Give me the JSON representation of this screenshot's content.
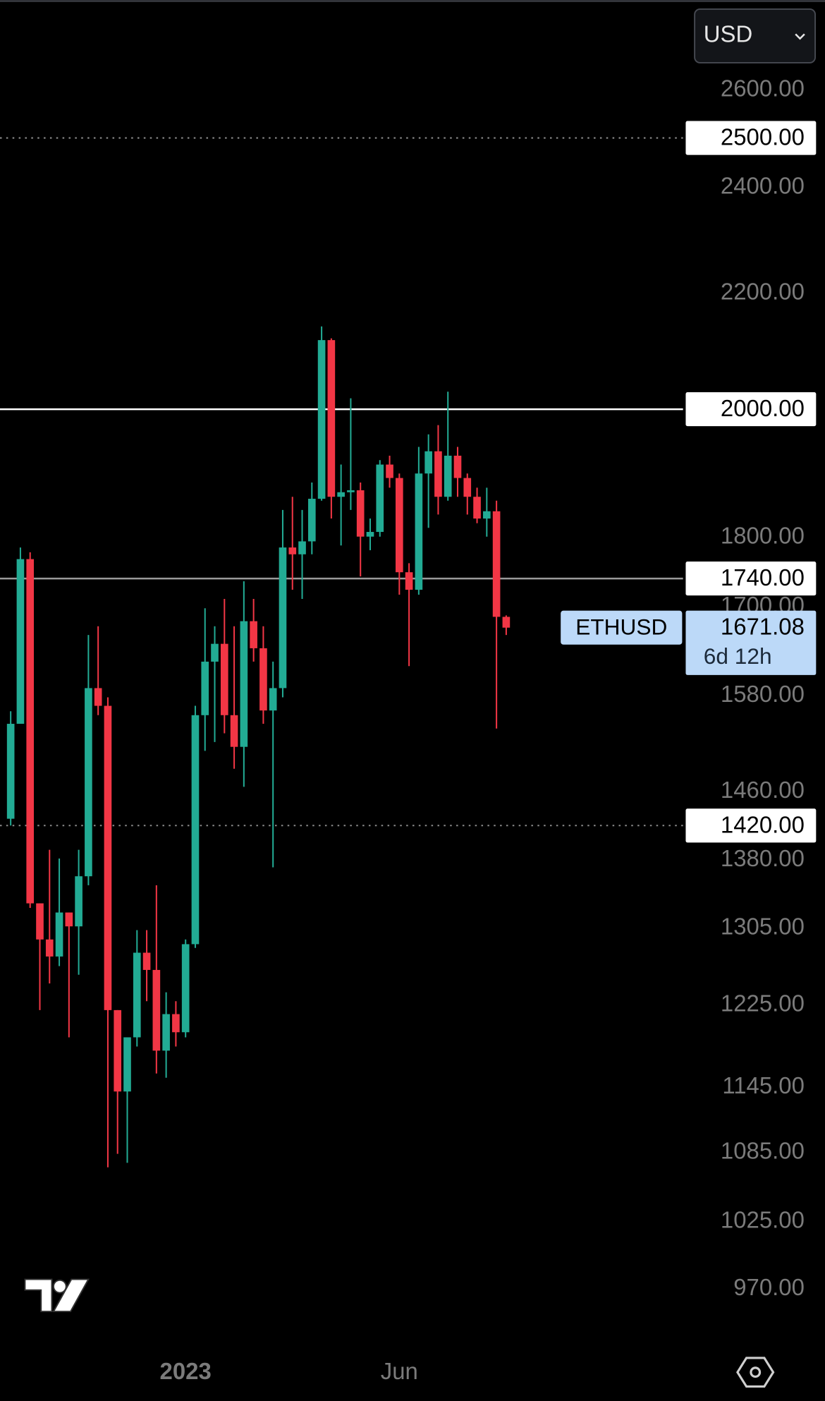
{
  "chart_data": {
    "type": "candlestick",
    "currency": "USD",
    "log_scale": true,
    "up_color": "#22ab94",
    "down_color": "#f23645",
    "categories": [
      null,
      null,
      null,
      null,
      null,
      null,
      null,
      null,
      null,
      null,
      null,
      null,
      null,
      null,
      null,
      null,
      null,
      null,
      null,
      null,
      null,
      null,
      null,
      null,
      null,
      null,
      null,
      null,
      null,
      null,
      null,
      null,
      null,
      null,
      null,
      null,
      null,
      null,
      null,
      null,
      null,
      null,
      null,
      null,
      null,
      null,
      null,
      null,
      null,
      null,
      null,
      null
    ],
    "open": [
      1428,
      1544,
      1768,
      1332,
      1293,
      1275,
      1322,
      1307,
      1362,
      1590,
      1567,
      1220,
      1141,
      1193,
      1279,
      1261,
      1180,
      1216,
      1198,
      1288,
      1555,
      1625,
      1649,
      1555,
      1515,
      1680,
      1643,
      1561,
      1590,
      1785,
      1775,
      1794,
      1858,
      2117,
      1861,
      1868,
      1871,
      1801,
      1808,
      1911,
      1890,
      1749,
      1724,
      1897,
      1932,
      1861,
      1925,
      1890,
      1861,
      1828,
      1839,
      1686
    ],
    "high": [
      1560,
      1785,
      1778,
      1332,
      1392,
      1382,
      1322,
      1392,
      1661,
      1673,
      1578,
      1220,
      1193,
      1303,
      1303,
      1352,
      1238,
      1229,
      1293,
      1567,
      1698,
      1673,
      1711,
      1673,
      1736,
      1711,
      1673,
      1625,
      1841,
      1861,
      1841,
      1883,
      2141,
      2120,
      1911,
      2018,
      1883,
      1828,
      1918,
      1925,
      1897,
      1762,
      1939,
      1959,
      1974,
      2029,
      1939,
      1897,
      1875,
      1875,
      1855,
      1688
    ],
    "low": [
      1420,
      1544,
      1327,
      1220,
      1247,
      1265,
      1193,
      1256,
      1352,
      1555,
      1072,
      1084,
      1076,
      1184,
      1229,
      1158,
      1154,
      1184,
      1193,
      1284,
      1510,
      1521,
      1532,
      1488,
      1466,
      1625,
      1544,
      1372,
      1578,
      1724,
      1711,
      1775,
      1855,
      1828,
      1788,
      1841,
      1743,
      1781,
      1801,
      1875,
      1717,
      1619,
      1717,
      1814,
      1834,
      1855,
      1861,
      1834,
      1821,
      1801,
      1538,
      1661
    ],
    "close": [
      1544,
      1768,
      1332,
      1293,
      1275,
      1322,
      1307,
      1362,
      1590,
      1567,
      1220,
      1141,
      1193,
      1279,
      1261,
      1180,
      1216,
      1198,
      1288,
      1555,
      1625,
      1649,
      1555,
      1515,
      1680,
      1643,
      1561,
      1590,
      1785,
      1775,
      1794,
      1858,
      2117,
      1861,
      1868,
      1871,
      1801,
      1808,
      1911,
      1890,
      1749,
      1724,
      1897,
      1932,
      1861,
      1925,
      1890,
      1861,
      1828,
      1839,
      1686,
      1671.08
    ],
    "xlim": [
      -1.1,
      69.2
    ],
    "xticks": [
      {
        "value": 18,
        "label": "2023"
      },
      {
        "value": 40,
        "label": "Jun"
      }
    ],
    "ylim": [
      930,
      2800
    ],
    "yticks": [
      {
        "value": 2600,
        "label": "2600.00"
      },
      {
        "value": 2400,
        "label": "2400.00"
      },
      {
        "value": 2200,
        "label": "2200.00"
      },
      {
        "value": 1800,
        "label": "1800.00"
      },
      {
        "value": 1700,
        "label": "1700.00"
      },
      {
        "value": 1580,
        "label": "1580.00"
      },
      {
        "value": 1460,
        "label": "1460.00"
      },
      {
        "value": 1380,
        "label": "1380.00"
      },
      {
        "value": 1305,
        "label": "1305.00"
      },
      {
        "value": 1225,
        "label": "1225.00"
      },
      {
        "value": 1145,
        "label": "1145.00"
      },
      {
        "value": 1085,
        "label": "1085.00"
      },
      {
        "value": 1025,
        "label": "1025.00"
      },
      {
        "value": 970,
        "label": "970.00"
      }
    ],
    "levels": [
      {
        "value": 2500,
        "label": "2500.00",
        "style": "dotted",
        "color": "#8a8a8a"
      },
      {
        "value": 2000,
        "label": "2000.00",
        "style": "solid",
        "color": "#ffffff"
      },
      {
        "value": 1740,
        "label": "1740.00",
        "style": "solid",
        "color": "#9a9a9a"
      },
      {
        "value": 1420,
        "label": "1420.00",
        "style": "dotted",
        "color": "#8a8a8a"
      }
    ],
    "last_price": {
      "symbol": "ETHUSD",
      "value": 1671.08,
      "label": "1671.08",
      "countdown": "6d 12h",
      "color": "#bcd9f8"
    }
  }
}
